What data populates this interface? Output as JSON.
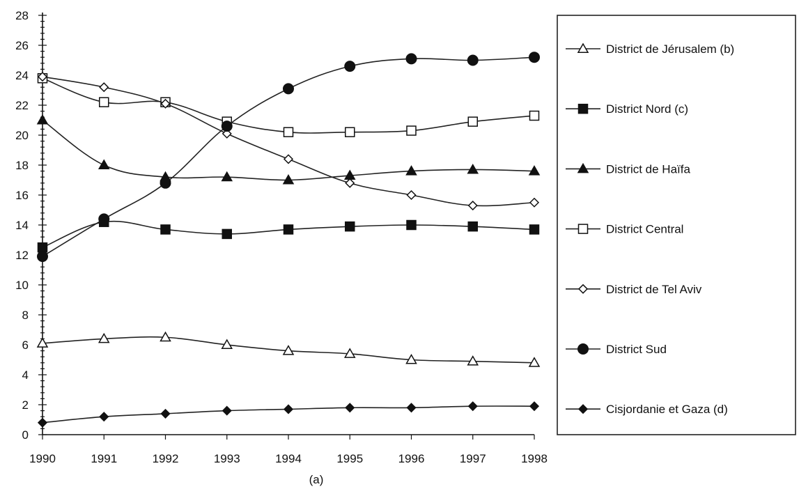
{
  "chart_data": {
    "type": "line",
    "title": "",
    "xlabel": "(a)",
    "ylabel": "",
    "x": [
      1990,
      1991,
      1992,
      1993,
      1994,
      1995,
      1996,
      1997,
      1998
    ],
    "xticks": [
      "1990",
      "1991",
      "1992",
      "1993",
      "1994",
      "1995",
      "1996",
      "1997",
      "1998"
    ],
    "ylim": [
      0,
      28
    ],
    "yticks": [
      "0",
      "2",
      "4",
      "6",
      "8",
      "10",
      "12",
      "14",
      "16",
      "18",
      "20",
      "22",
      "24",
      "26",
      "28"
    ],
    "grid": false,
    "legend_position": "right",
    "series": [
      {
        "name": "District de Jérusalem (b)",
        "marker": "triangle-open",
        "values": [
          6.1,
          6.4,
          6.5,
          6.0,
          5.6,
          5.4,
          5.0,
          4.9,
          4.8
        ]
      },
      {
        "name": "District Nord (c)",
        "marker": "square-filled",
        "values": [
          12.5,
          14.2,
          13.7,
          13.4,
          13.7,
          13.9,
          14.0,
          13.9,
          13.7
        ]
      },
      {
        "name": "District de Haïfa",
        "marker": "triangle-filled",
        "values": [
          21.0,
          18.0,
          17.2,
          17.2,
          17.0,
          17.3,
          17.6,
          17.7,
          17.6
        ]
      },
      {
        "name": "District Central",
        "marker": "square-open",
        "values": [
          23.8,
          22.2,
          22.2,
          20.9,
          20.2,
          20.2,
          20.3,
          20.9,
          21.3
        ]
      },
      {
        "name": "District de Tel Aviv",
        "marker": "diamond-open",
        "values": [
          23.9,
          23.2,
          22.1,
          20.1,
          18.4,
          16.8,
          16.0,
          15.3,
          15.5
        ]
      },
      {
        "name": "District Sud",
        "marker": "circle-filled",
        "values": [
          11.9,
          14.4,
          16.8,
          20.6,
          23.1,
          24.6,
          25.1,
          25.0,
          25.2
        ]
      },
      {
        "name": "Cisjordanie et Gaza (d)",
        "marker": "diamond-filled",
        "values": [
          0.8,
          1.2,
          1.4,
          1.6,
          1.7,
          1.8,
          1.8,
          1.9,
          1.9
        ]
      }
    ]
  }
}
